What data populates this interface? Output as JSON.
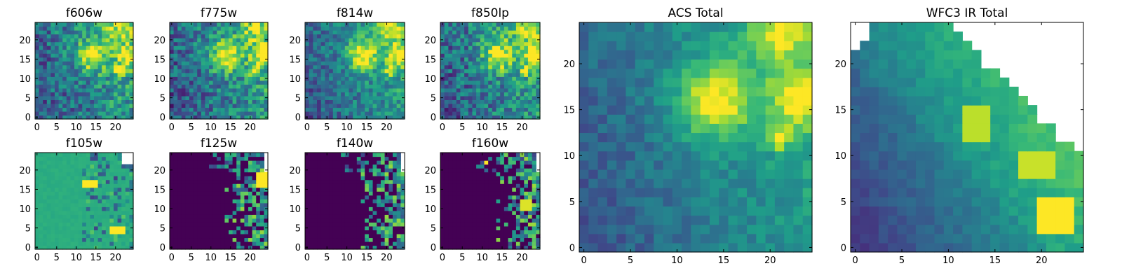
{
  "chart_data": [
    {
      "type": "heatmap",
      "title": "f606w",
      "xlim": [
        0,
        24
      ],
      "ylim": [
        0,
        24
      ],
      "xticks": [
        0,
        5,
        10,
        15,
        20
      ],
      "yticks": [
        0,
        5,
        10,
        15,
        20
      ],
      "colormap": "viridis",
      "grid": false,
      "values": "25x25 pixel image of flux; noisy, blob near (14,16), bright pixel near (21,12)"
    },
    {
      "type": "heatmap",
      "title": "f775w",
      "xlim": [
        0,
        24
      ],
      "ylim": [
        0,
        24
      ],
      "xticks": [
        0,
        5,
        10,
        15,
        20
      ],
      "yticks": [
        0,
        5,
        10,
        15,
        20
      ],
      "colormap": "viridis",
      "grid": false
    },
    {
      "type": "heatmap",
      "title": "f814w",
      "xlim": [
        0,
        24
      ],
      "ylim": [
        0,
        24
      ],
      "xticks": [
        0,
        5,
        10,
        15,
        20
      ],
      "yticks": [
        0,
        5,
        10,
        15,
        20
      ],
      "colormap": "viridis",
      "grid": false
    },
    {
      "type": "heatmap",
      "title": "f850lp",
      "xlim": [
        0,
        24
      ],
      "ylim": [
        0,
        24
      ],
      "xticks": [
        0,
        5,
        10,
        15,
        20
      ],
      "yticks": [
        0,
        5,
        10,
        15,
        20
      ],
      "colormap": "viridis",
      "grid": false
    },
    {
      "type": "heatmap",
      "title": "f105w",
      "xlim": [
        0,
        24
      ],
      "ylim": [
        0,
        24
      ],
      "xticks": [
        0,
        5,
        10,
        15,
        20
      ],
      "yticks": [
        0,
        5,
        10,
        15,
        20
      ],
      "colormap": "viridis",
      "grid": false
    },
    {
      "type": "heatmap",
      "title": "f125w",
      "xlim": [
        0,
        24
      ],
      "ylim": [
        0,
        24
      ],
      "xticks": [
        0,
        5,
        10,
        15,
        20
      ],
      "yticks": [
        0,
        5,
        10,
        15,
        20
      ],
      "colormap": "viridis",
      "grid": false
    },
    {
      "type": "heatmap",
      "title": "f140w",
      "xlim": [
        0,
        24
      ],
      "ylim": [
        0,
        24
      ],
      "xticks": [
        0,
        5,
        10,
        15,
        20
      ],
      "yticks": [
        0,
        5,
        10,
        15,
        20
      ],
      "colormap": "viridis",
      "grid": false
    },
    {
      "type": "heatmap",
      "title": "f160w",
      "xlim": [
        0,
        24
      ],
      "ylim": [
        0,
        24
      ],
      "xticks": [
        0,
        5,
        10,
        15,
        20
      ],
      "yticks": [
        0,
        5,
        10,
        15,
        20
      ],
      "colormap": "viridis",
      "grid": false
    },
    {
      "type": "heatmap",
      "title": "ACS Total",
      "xlim": [
        0,
        24
      ],
      "ylim": [
        0,
        24
      ],
      "xticks": [
        0,
        5,
        10,
        15,
        20
      ],
      "yticks": [
        0,
        5,
        10,
        15,
        20
      ],
      "colormap": "viridis",
      "grid": false
    },
    {
      "type": "heatmap",
      "title": "WFC3 IR Total",
      "xlim": [
        0,
        24
      ],
      "ylim": [
        0,
        24
      ],
      "xticks": [
        0,
        5,
        10,
        15,
        20
      ],
      "yticks": [
        0,
        5,
        10,
        15,
        20
      ],
      "colormap": "viridis",
      "grid": false
    }
  ],
  "colors": {
    "viridis_low": "#440154",
    "viridis_mid": "#21918c",
    "viridis_high": "#fde725",
    "masked": "#ffffff"
  }
}
